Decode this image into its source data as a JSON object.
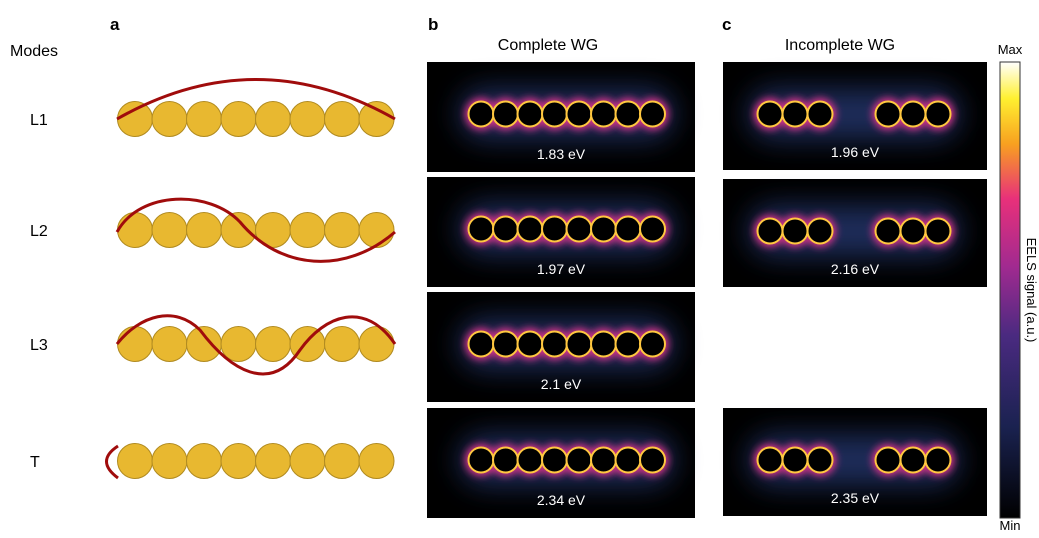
{
  "panel_labels": [
    "a",
    "b",
    "c"
  ],
  "row_header": "Modes",
  "modes": [
    "L1",
    "L2",
    "L3",
    "T"
  ],
  "complete": {
    "title": "Complete WG",
    "energies": [
      "1.83 eV",
      "1.97 eV",
      "2.1 eV",
      "2.34 eV"
    ]
  },
  "incomplete": {
    "title": "Incomplete WG",
    "energies": [
      "1.96 eV",
      "2.16 eV",
      "2.35 eV"
    ]
  },
  "colorbar": {
    "max": "Max",
    "min": "Min",
    "label": "EELS signal (a.u.)"
  }
}
